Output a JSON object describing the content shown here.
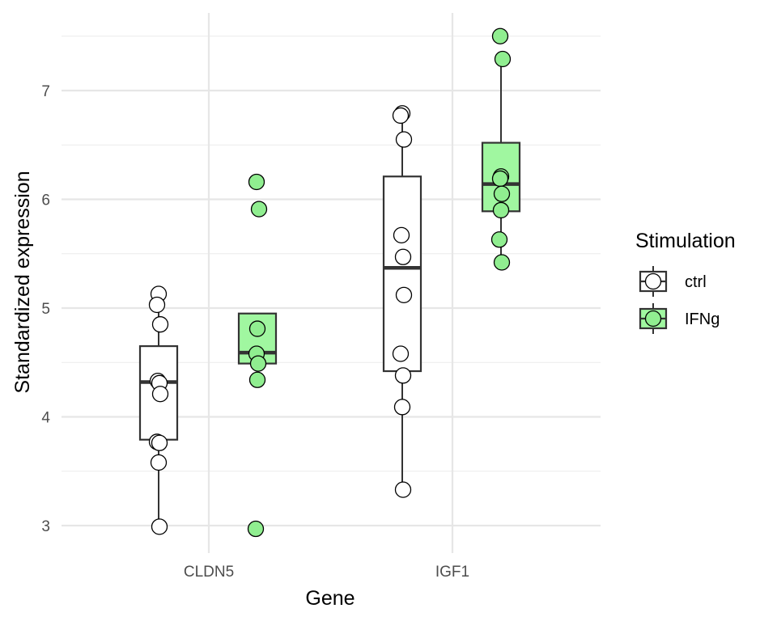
{
  "chart_data": {
    "type": "box",
    "xlabel": "Gene",
    "ylabel": "Standardized expression",
    "categories": [
      "CLDN5",
      "IGF1"
    ],
    "ylim": [
      2.75,
      7.72
    ],
    "yticks": [
      3,
      4,
      5,
      6,
      7
    ],
    "grid": true,
    "legend": {
      "title": "Stimulation",
      "placement": "right",
      "entries": [
        "ctrl",
        "IFNg"
      ]
    },
    "series": [
      {
        "name": "ctrl",
        "fill": "#ffffff",
        "box_fill": "#ffffff",
        "groups": [
          {
            "category": "CLDN5",
            "box": {
              "q1": 3.79,
              "median": 4.32,
              "q3": 4.65,
              "whisker_low": 2.99,
              "whisker_high": 5.13
            },
            "points": [
              5.13,
              5.03,
              4.85,
              4.33,
              4.31,
              4.21,
              3.77,
              3.76,
              3.58,
              2.99
            ]
          },
          {
            "category": "IGF1",
            "box": {
              "q1": 4.42,
              "median": 5.37,
              "q3": 6.21,
              "whisker_low": 3.33,
              "whisker_high": 6.79
            },
            "points": [
              6.79,
              6.77,
              6.55,
              5.67,
              5.47,
              5.12,
              4.58,
              4.38,
              4.09,
              3.33
            ]
          }
        ]
      },
      {
        "name": "IFNg",
        "fill": "#90ee90",
        "box_fill": "#a0f7a0",
        "groups": [
          {
            "category": "CLDN5",
            "box": {
              "q1": 4.49,
              "median": 4.59,
              "q3": 4.95,
              "whisker_low": 4.49,
              "whisker_high": 4.95
            },
            "points": [
              6.16,
              5.91,
              4.81,
              4.58,
              4.49,
              4.34,
              2.97
            ]
          },
          {
            "category": "IGF1",
            "box": {
              "q1": 5.89,
              "median": 6.14,
              "q3": 6.52,
              "whisker_low": 5.42,
              "whisker_high": 7.29
            },
            "points": [
              7.5,
              7.29,
              6.21,
              6.19,
              6.05,
              5.9,
              5.63,
              5.42
            ]
          }
        ]
      }
    ]
  }
}
